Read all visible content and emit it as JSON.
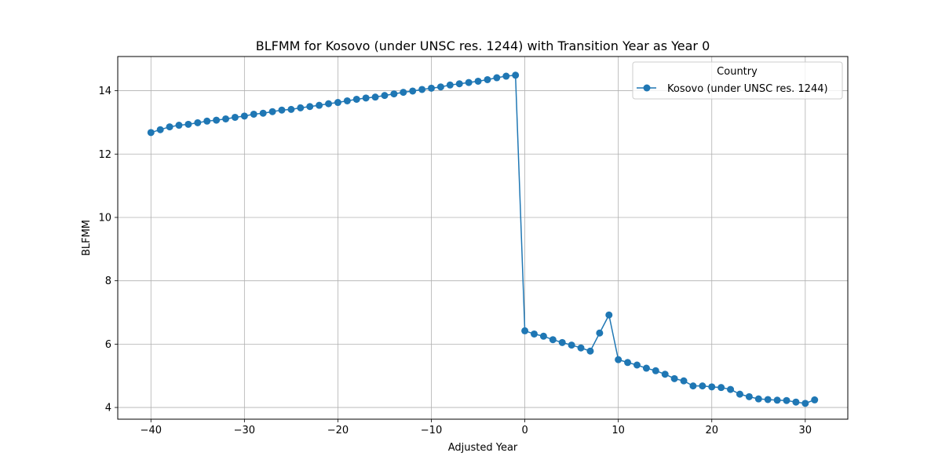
{
  "chart_data": {
    "type": "line",
    "title": "BLFMM for Kosovo (under UNSC res. 1244) with Transition Year as Year 0",
    "xlabel": "Adjusted Year",
    "ylabel": "BLFMM",
    "xlim": [
      -43.55,
      34.55
    ],
    "ylim": [
      3.63,
      15.08
    ],
    "xticks": [
      -40,
      -30,
      -20,
      -10,
      0,
      10,
      20,
      30
    ],
    "xtick_labels": [
      "−40",
      "−30",
      "−20",
      "−10",
      "0",
      "10",
      "20",
      "30"
    ],
    "yticks": [
      4,
      6,
      8,
      10,
      12,
      14
    ],
    "ytick_labels": [
      "4",
      "6",
      "8",
      "10",
      "12",
      "14"
    ],
    "grid": true,
    "legend": {
      "title": "Country",
      "placement": "top-right"
    },
    "colors": {
      "series": "#1f77b4",
      "grid": "#b0b0b0"
    },
    "x": [
      -40,
      -39,
      -38,
      -37,
      -36,
      -35,
      -34,
      -33,
      -32,
      -31,
      -30,
      -29,
      -28,
      -27,
      -26,
      -25,
      -24,
      -23,
      -22,
      -21,
      -20,
      -19,
      -18,
      -17,
      -16,
      -15,
      -14,
      -13,
      -12,
      -11,
      -10,
      -9,
      -8,
      -7,
      -6,
      -5,
      -4,
      -3,
      -2,
      -1,
      0,
      1,
      2,
      3,
      4,
      5,
      6,
      7,
      8,
      9,
      10,
      11,
      12,
      13,
      14,
      15,
      16,
      17,
      18,
      19,
      20,
      21,
      22,
      23,
      24,
      25,
      26,
      27,
      28,
      29,
      30,
      31
    ],
    "series": [
      {
        "name": "Kosovo (under UNSC res. 1244)",
        "values": [
          12.68,
          12.77,
          12.86,
          12.91,
          12.94,
          12.99,
          13.04,
          13.07,
          13.11,
          13.16,
          13.2,
          13.26,
          13.29,
          13.34,
          13.39,
          13.41,
          13.46,
          13.5,
          13.54,
          13.59,
          13.63,
          13.68,
          13.73,
          13.77,
          13.8,
          13.85,
          13.9,
          13.95,
          13.99,
          14.04,
          14.08,
          14.12,
          14.18,
          14.22,
          14.26,
          14.3,
          14.35,
          14.41,
          14.46,
          14.49,
          6.42,
          6.32,
          6.25,
          6.14,
          6.05,
          5.97,
          5.88,
          5.78,
          6.35,
          6.92,
          5.51,
          5.42,
          5.34,
          5.24,
          5.16,
          5.05,
          4.91,
          4.84,
          4.68,
          4.68,
          4.65,
          4.63,
          4.57,
          4.42,
          4.34,
          4.27,
          4.25,
          4.23,
          4.22,
          4.17,
          4.13,
          4.24
        ]
      }
    ]
  }
}
